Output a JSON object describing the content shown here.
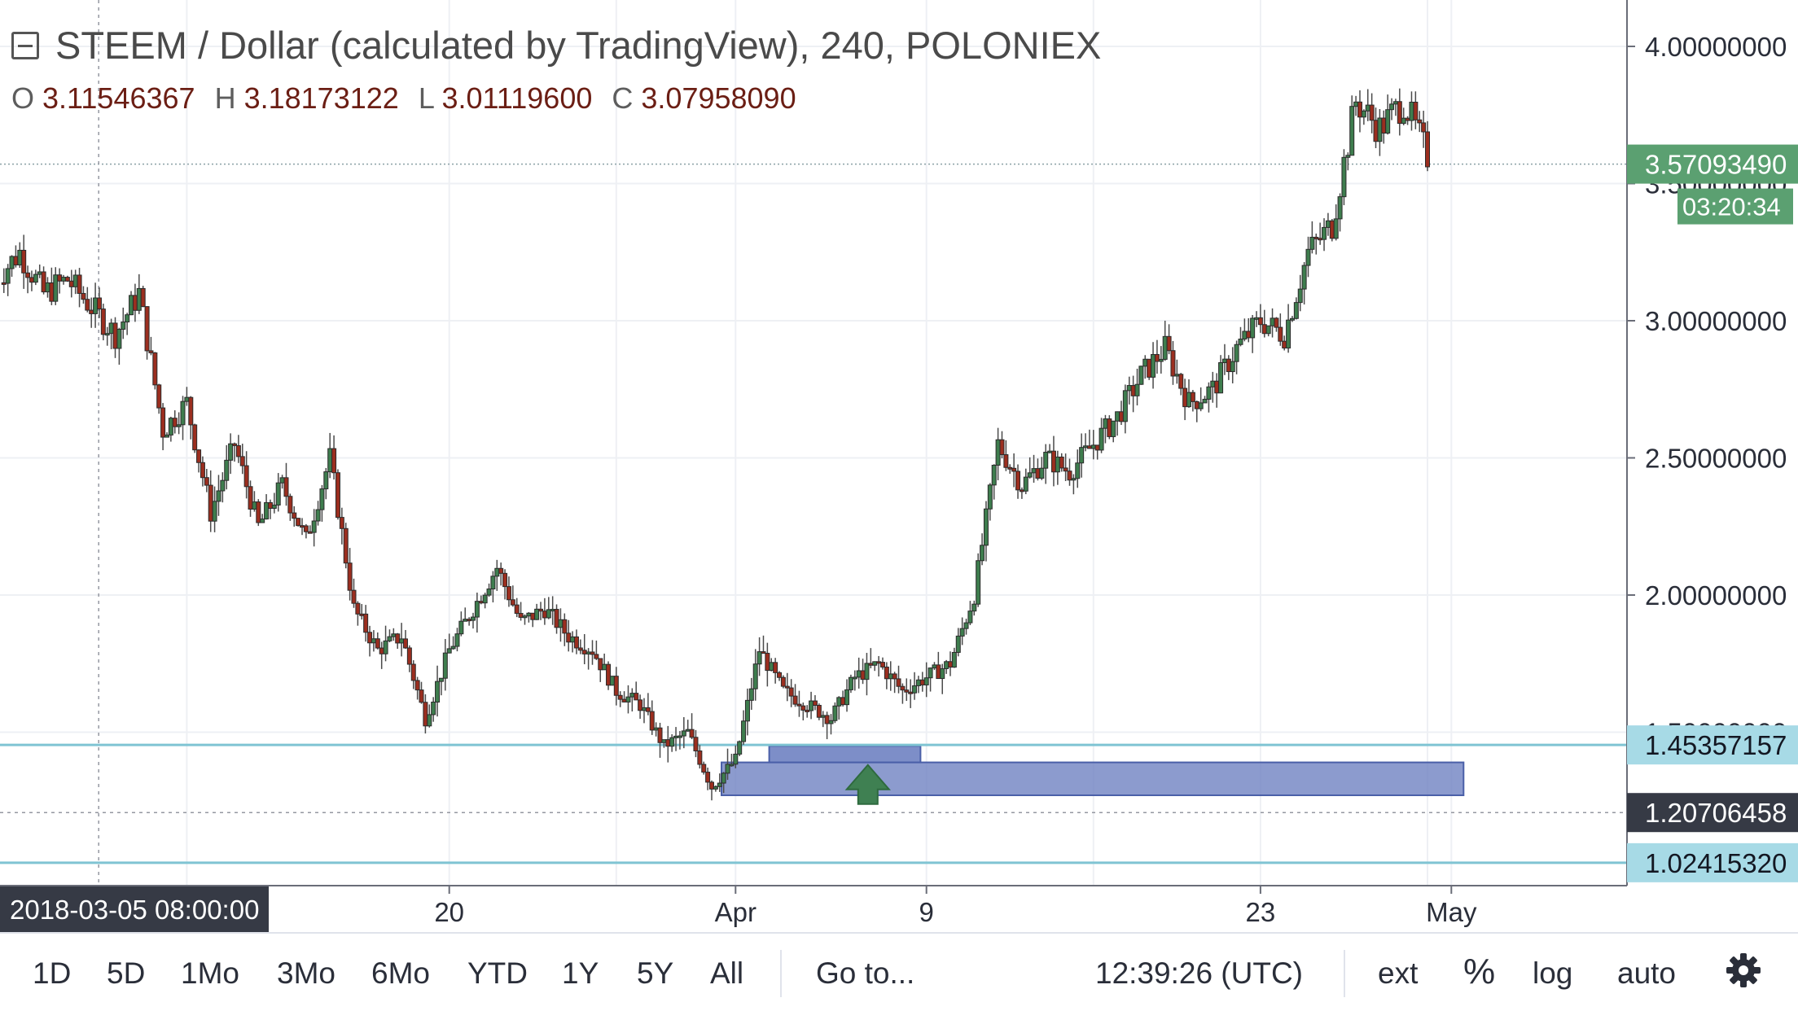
{
  "legend": {
    "title": "STEEM / Dollar (calculated by TradingView), 240, POLONIEX",
    "open_label": "O",
    "open": "3.11546367",
    "high_label": "H",
    "high": "3.18173122",
    "low_label": "L",
    "low": "3.01119600",
    "close_label": "C",
    "close": "3.07958090"
  },
  "chart_data": {
    "type": "candlestick",
    "symbol": "STEEM / Dollar",
    "exchange": "POLONIEX",
    "interval": "240",
    "ylim": [
      1.0,
      4.1
    ],
    "y_ticks": [
      "4.00000000",
      "3.50000000",
      "3.00000000",
      "2.50000000",
      "2.00000000",
      "1.50000000"
    ],
    "x_ticks": [
      "20",
      "Apr",
      "9",
      "23",
      "May"
    ],
    "crosshair_date": "2018-03-05 08:00:00",
    "current_price": "3.57093490",
    "countdown": "03:20:34",
    "horizontal_lines": [
      {
        "value": 1.45357157,
        "label": "1.45357157"
      },
      {
        "value": 1.0241532,
        "label": "1.02415320"
      }
    ],
    "crosshair_price": {
      "value": 1.20706458,
      "label": "1.20706458"
    },
    "zones": [
      {
        "from": "2018-03-31",
        "to": "2018-05-01",
        "low": 1.27,
        "high": 1.39
      },
      {
        "from": "2018-04-02",
        "to": "2018-04-08",
        "low": 1.39,
        "high": 1.45
      }
    ],
    "arrow": {
      "date": "2018-04-06",
      "price": 1.25,
      "direction": "up"
    },
    "price_path": [
      [
        "2018-03-01",
        3.15
      ],
      [
        "2018-03-02",
        3.25
      ],
      [
        "2018-03-03",
        3.1
      ],
      [
        "2018-03-04",
        3.15
      ],
      [
        "2018-03-05",
        3.05
      ],
      [
        "2018-03-06",
        2.95
      ],
      [
        "2018-03-07",
        3.1
      ],
      [
        "2018-03-08",
        2.6
      ],
      [
        "2018-03-09",
        2.7
      ],
      [
        "2018-03-10",
        2.3
      ],
      [
        "2018-03-11",
        2.55
      ],
      [
        "2018-03-12",
        2.25
      ],
      [
        "2018-03-13",
        2.4
      ],
      [
        "2018-03-14",
        2.2
      ],
      [
        "2018-03-15",
        2.5
      ],
      [
        "2018-03-16",
        1.95
      ],
      [
        "2018-03-17",
        1.8
      ],
      [
        "2018-03-18",
        1.85
      ],
      [
        "2018-03-19",
        1.55
      ],
      [
        "2018-03-20",
        1.8
      ],
      [
        "2018-03-21",
        1.95
      ],
      [
        "2018-03-22",
        2.1
      ],
      [
        "2018-03-23",
        1.9
      ],
      [
        "2018-03-24",
        1.95
      ],
      [
        "2018-03-25",
        1.85
      ],
      [
        "2018-03-26",
        1.8
      ],
      [
        "2018-03-27",
        1.65
      ],
      [
        "2018-03-28",
        1.6
      ],
      [
        "2018-03-29",
        1.45
      ],
      [
        "2018-03-30",
        1.5
      ],
      [
        "2018-03-31",
        1.3
      ],
      [
        "2018-04-01",
        1.4
      ],
      [
        "2018-04-02",
        1.8
      ],
      [
        "2018-04-03",
        1.65
      ],
      [
        "2018-04-04",
        1.6
      ],
      [
        "2018-04-05",
        1.55
      ],
      [
        "2018-04-06",
        1.7
      ],
      [
        "2018-04-07",
        1.75
      ],
      [
        "2018-04-08",
        1.65
      ],
      [
        "2018-04-09",
        1.7
      ],
      [
        "2018-04-10",
        1.75
      ],
      [
        "2018-04-11",
        2.0
      ],
      [
        "2018-04-12",
        2.55
      ],
      [
        "2018-04-13",
        2.4
      ],
      [
        "2018-04-14",
        2.5
      ],
      [
        "2018-04-15",
        2.45
      ],
      [
        "2018-04-16",
        2.55
      ],
      [
        "2018-04-17",
        2.65
      ],
      [
        "2018-04-18",
        2.8
      ],
      [
        "2018-04-19",
        2.9
      ],
      [
        "2018-04-20",
        2.7
      ],
      [
        "2018-04-21",
        2.75
      ],
      [
        "2018-04-22",
        2.9
      ],
      [
        "2018-04-23",
        3.0
      ],
      [
        "2018-04-24",
        2.95
      ],
      [
        "2018-04-25",
        3.25
      ],
      [
        "2018-04-26",
        3.35
      ],
      [
        "2018-04-27",
        3.8
      ],
      [
        "2018-04-28",
        3.7
      ],
      [
        "2018-04-29",
        3.8
      ],
      [
        "2018-04-30",
        3.6
      ]
    ]
  },
  "toolbar": {
    "ranges": [
      "1D",
      "5D",
      "1Mo",
      "3Mo",
      "6Mo",
      "YTD",
      "1Y",
      "5Y",
      "All"
    ],
    "goto_label": "Go to...",
    "clock": "12:39:26 (UTC)",
    "ext_label": "ext",
    "percent_label": "%",
    "log_label": "log",
    "auto_label": "auto"
  },
  "colors": {
    "up": "#3e7d4e",
    "down": "#9b2e1f",
    "zone": "#6f82c2",
    "line": "#7fc4d3",
    "price_tag": "#5ba071",
    "arrow": "#3f8052"
  }
}
